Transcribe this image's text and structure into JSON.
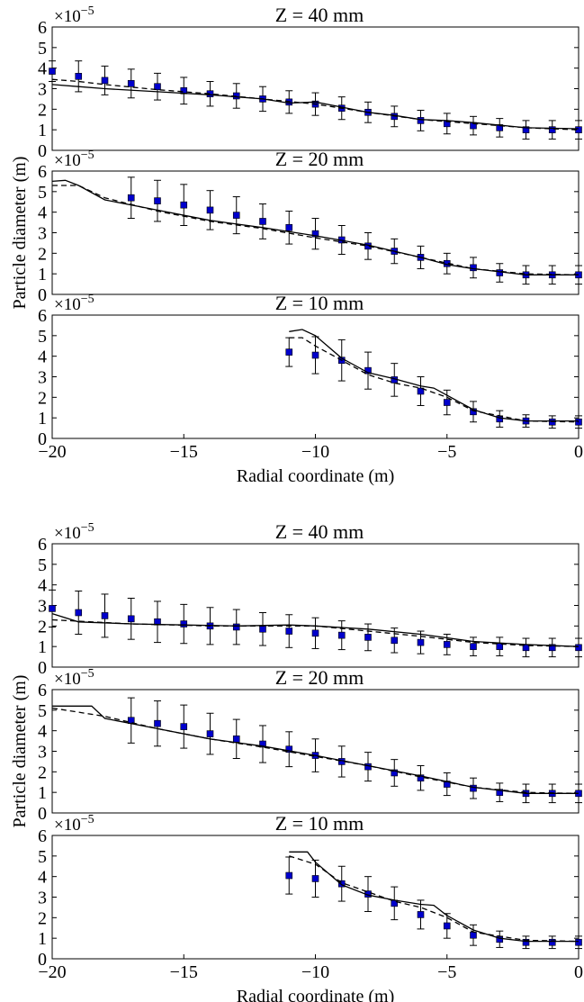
{
  "chart_data": [
    {
      "type": "line",
      "title": "Z = 40 mm",
      "offset_base": "×10",
      "offset_exp": "−5",
      "xlim": [
        -20,
        0
      ],
      "ylim": [
        0,
        6
      ],
      "yticks": [
        0,
        1,
        2,
        3,
        4,
        5,
        6
      ],
      "series": [
        {
          "style": "markers",
          "color": "#0000cc",
          "x": [
            -20,
            -19,
            -18,
            -17,
            -16,
            -15,
            -14,
            -13,
            -12,
            -11,
            -10,
            -9,
            -8,
            -7,
            -6,
            -5,
            -4,
            -3,
            -2,
            -1,
            0
          ],
          "values": [
            3.85,
            3.6,
            3.4,
            3.25,
            3.1,
            2.9,
            2.75,
            2.65,
            2.5,
            2.35,
            2.25,
            2.05,
            1.85,
            1.65,
            1.45,
            1.3,
            1.2,
            1.1,
            1.0,
            1.0,
            1.0
          ],
          "errors": [
            0.5,
            0.75,
            0.7,
            0.7,
            0.65,
            0.65,
            0.6,
            0.6,
            0.6,
            0.55,
            0.55,
            0.55,
            0.5,
            0.5,
            0.5,
            0.5,
            0.45,
            0.45,
            0.45,
            0.45,
            0.45
          ]
        },
        {
          "style": "solid",
          "color": "#000000",
          "x": [
            -20,
            -19,
            -18,
            -16,
            -14,
            -12,
            -11,
            -10,
            -9,
            -8,
            -7,
            -6,
            -5,
            -4,
            -2,
            0
          ],
          "values": [
            3.2,
            3.1,
            3.0,
            2.85,
            2.7,
            2.5,
            2.3,
            2.35,
            2.1,
            1.85,
            1.7,
            1.5,
            1.45,
            1.35,
            1.1,
            1.05
          ]
        },
        {
          "style": "dashed",
          "color": "#000000",
          "x": [
            -20,
            -19,
            -18,
            -16,
            -14,
            -12,
            -10,
            -8,
            -6,
            -4,
            -2,
            0
          ],
          "values": [
            3.45,
            3.35,
            3.2,
            2.95,
            2.75,
            2.5,
            2.25,
            1.85,
            1.5,
            1.3,
            1.1,
            1.0
          ]
        }
      ]
    },
    {
      "type": "line",
      "title": "Z = 20 mm",
      "offset_base": "×10",
      "offset_exp": "−5",
      "ylabel": "Particle diameter (m)",
      "xlim": [
        -20,
        0
      ],
      "ylim": [
        0,
        6
      ],
      "yticks": [
        0,
        1,
        2,
        3,
        4,
        5,
        6
      ],
      "series": [
        {
          "style": "markers",
          "color": "#0000cc",
          "x": [
            -17,
            -16,
            -15,
            -14,
            -13,
            -12,
            -11,
            -10,
            -9,
            -8,
            -7,
            -6,
            -5,
            -4,
            -3,
            -2,
            -1,
            0
          ],
          "values": [
            4.7,
            4.55,
            4.35,
            4.1,
            3.85,
            3.55,
            3.25,
            2.95,
            2.65,
            2.35,
            2.1,
            1.8,
            1.5,
            1.3,
            1.05,
            0.95,
            0.95,
            0.95
          ],
          "errors": [
            1.0,
            1.0,
            1.0,
            0.95,
            0.9,
            0.85,
            0.8,
            0.75,
            0.7,
            0.65,
            0.6,
            0.55,
            0.5,
            0.5,
            0.45,
            0.45,
            0.45,
            0.45
          ]
        },
        {
          "style": "solid",
          "color": "#000000",
          "x": [
            -20,
            -19.5,
            -19,
            -18,
            -16,
            -14,
            -12,
            -10,
            -8,
            -6,
            -5,
            -4,
            -3,
            -2,
            0
          ],
          "values": [
            5.5,
            5.55,
            5.3,
            4.6,
            4.1,
            3.6,
            3.25,
            2.85,
            2.4,
            1.8,
            1.45,
            1.25,
            1.1,
            0.95,
            0.95
          ]
        },
        {
          "style": "dashed",
          "color": "#000000",
          "x": [
            -20,
            -19,
            -18,
            -16,
            -14,
            -12,
            -10,
            -8,
            -6,
            -4,
            -2,
            0
          ],
          "values": [
            5.3,
            5.3,
            4.7,
            4.05,
            3.55,
            3.2,
            2.75,
            2.35,
            1.8,
            1.25,
            1.0,
            0.95
          ]
        }
      ]
    },
    {
      "type": "line",
      "title": "Z = 10 mm",
      "offset_base": "×10",
      "offset_exp": "−5",
      "xlabel": "Radial coordinate (m)",
      "xlim": [
        -20,
        0
      ],
      "ylim": [
        0,
        6
      ],
      "yticks": [
        0,
        1,
        2,
        3,
        4,
        5,
        6
      ],
      "xticks": [
        {
          "value": -20,
          "label": "−20"
        },
        {
          "value": -15,
          "label": "−15"
        },
        {
          "value": -10,
          "label": "−10"
        },
        {
          "value": -5,
          "label": "−5"
        },
        0
      ],
      "series": [
        {
          "style": "markers",
          "color": "#0000cc",
          "x": [
            -11,
            -10,
            -9,
            -8,
            -7,
            -6,
            -5,
            -4,
            -3,
            -2,
            -1,
            0
          ],
          "values": [
            4.2,
            4.05,
            3.8,
            3.3,
            2.85,
            2.3,
            1.75,
            1.3,
            0.95,
            0.85,
            0.8,
            0.8
          ],
          "errors": [
            0.7,
            0.9,
            1.0,
            0.9,
            0.8,
            0.7,
            0.6,
            0.5,
            0.4,
            0.3,
            0.3,
            0.3
          ]
        },
        {
          "style": "solid",
          "color": "#000000",
          "x": [
            -11,
            -10.5,
            -10,
            -9,
            -8,
            -7,
            -6,
            -5.5,
            -5,
            -4,
            -3,
            -2,
            0
          ],
          "values": [
            5.2,
            5.3,
            5.0,
            3.9,
            3.2,
            2.9,
            2.55,
            2.45,
            2.1,
            1.4,
            1.0,
            0.85,
            0.85
          ]
        },
        {
          "style": "dashed",
          "color": "#000000",
          "x": [
            -11,
            -10.5,
            -10,
            -9,
            -8,
            -7,
            -6,
            -5,
            -4,
            -2,
            0
          ],
          "values": [
            4.9,
            4.9,
            4.5,
            3.8,
            3.1,
            2.7,
            2.45,
            2.0,
            1.35,
            0.85,
            0.8
          ]
        }
      ]
    },
    {
      "type": "line",
      "title": "Z = 40 mm",
      "offset_base": "×10",
      "offset_exp": "−5",
      "xlim": [
        -20,
        0
      ],
      "ylim": [
        0,
        6
      ],
      "yticks": [
        0,
        1,
        2,
        3,
        4,
        5,
        6
      ],
      "series": [
        {
          "style": "markers",
          "color": "#0000cc",
          "x": [
            -20,
            -19,
            -18,
            -17,
            -16,
            -15,
            -14,
            -13,
            -12,
            -11,
            -10,
            -9,
            -8,
            -7,
            -6,
            -5,
            -4,
            -3,
            -2,
            -1,
            0
          ],
          "values": [
            2.85,
            2.65,
            2.5,
            2.35,
            2.2,
            2.1,
            2.0,
            1.95,
            1.85,
            1.75,
            1.65,
            1.55,
            1.45,
            1.3,
            1.2,
            1.1,
            1.0,
            1.0,
            0.95,
            0.95,
            0.95
          ],
          "errors": [
            0.9,
            1.05,
            1.05,
            1.0,
            1.0,
            0.95,
            0.9,
            0.85,
            0.8,
            0.8,
            0.75,
            0.7,
            0.65,
            0.6,
            0.55,
            0.5,
            0.45,
            0.45,
            0.45,
            0.45,
            0.45
          ]
        },
        {
          "style": "solid",
          "color": "#000000",
          "x": [
            -20,
            -19,
            -17,
            -15,
            -13,
            -11,
            -10,
            -8,
            -6,
            -4,
            -2,
            0
          ],
          "values": [
            2.6,
            2.2,
            2.1,
            2.05,
            2.0,
            2.05,
            2.0,
            1.85,
            1.6,
            1.25,
            1.1,
            1.0
          ]
        },
        {
          "style": "dashed",
          "color": "#000000",
          "x": [
            -20,
            -17,
            -14,
            -10,
            -8,
            -6,
            -4,
            -2,
            0
          ],
          "values": [
            2.3,
            2.1,
            2.0,
            2.0,
            1.75,
            1.5,
            1.2,
            1.05,
            1.0
          ]
        }
      ]
    },
    {
      "type": "line",
      "title": "Z = 20 mm",
      "offset_base": "×10",
      "offset_exp": "−5",
      "ylabel": "Particle diameter (m)",
      "xlim": [
        -20,
        0
      ],
      "ylim": [
        0,
        6
      ],
      "yticks": [
        0,
        1,
        2,
        3,
        4,
        5,
        6
      ],
      "series": [
        {
          "style": "markers",
          "color": "#0000cc",
          "x": [
            -17,
            -16,
            -15,
            -14,
            -13,
            -12,
            -11,
            -10,
            -9,
            -8,
            -7,
            -6,
            -5,
            -4,
            -3,
            -2,
            -1,
            0
          ],
          "values": [
            4.5,
            4.35,
            4.2,
            3.85,
            3.6,
            3.35,
            3.1,
            2.8,
            2.5,
            2.25,
            1.95,
            1.7,
            1.4,
            1.2,
            1.0,
            0.95,
            0.95,
            0.95
          ],
          "errors": [
            1.1,
            1.1,
            1.05,
            1.0,
            0.95,
            0.9,
            0.85,
            0.8,
            0.75,
            0.7,
            0.65,
            0.6,
            0.55,
            0.5,
            0.45,
            0.45,
            0.45,
            0.45
          ]
        },
        {
          "style": "solid",
          "color": "#000000",
          "x": [
            -20,
            -19,
            -18.5,
            -18,
            -16,
            -14,
            -12,
            -10,
            -8,
            -6,
            -4,
            -2,
            0
          ],
          "values": [
            5.2,
            5.2,
            5.2,
            4.6,
            4.1,
            3.6,
            3.25,
            2.8,
            2.3,
            1.8,
            1.25,
            0.95,
            0.95
          ]
        },
        {
          "style": "dashed",
          "color": "#000000",
          "x": [
            -20,
            -18,
            -16,
            -14,
            -12,
            -10,
            -8,
            -6,
            -4,
            -2,
            0
          ],
          "values": [
            5.1,
            4.7,
            4.1,
            3.6,
            3.2,
            2.75,
            2.3,
            1.75,
            1.25,
            1.0,
            0.95
          ]
        }
      ]
    },
    {
      "type": "line",
      "title": "Z = 10 mm",
      "offset_base": "×10",
      "offset_exp": "−5",
      "xlabel": "Radial coordinate (m)",
      "xlim": [
        -20,
        0
      ],
      "ylim": [
        0,
        6
      ],
      "yticks": [
        0,
        1,
        2,
        3,
        4,
        5,
        6
      ],
      "xticks": [
        {
          "value": -20,
          "label": "−20"
        },
        {
          "value": -15,
          "label": "−15"
        },
        {
          "value": -10,
          "label": "−10"
        },
        {
          "value": -5,
          "label": "−5"
        },
        0
      ],
      "series": [
        {
          "style": "markers",
          "color": "#0000cc",
          "x": [
            -11,
            -10,
            -9,
            -8,
            -7,
            -6,
            -5,
            -4,
            -3,
            -2,
            -1,
            0
          ],
          "values": [
            4.05,
            3.9,
            3.65,
            3.15,
            2.7,
            2.15,
            1.6,
            1.15,
            0.95,
            0.8,
            0.8,
            0.8
          ],
          "errors": [
            0.9,
            0.9,
            0.85,
            0.85,
            0.8,
            0.7,
            0.6,
            0.5,
            0.4,
            0.3,
            0.3,
            0.3
          ]
        },
        {
          "style": "solid",
          "color": "#000000",
          "x": [
            -11,
            -10.3,
            -10,
            -9,
            -8,
            -7,
            -6,
            -5.5,
            -5,
            -4,
            -3,
            -2,
            0
          ],
          "values": [
            5.2,
            5.2,
            4.7,
            3.6,
            3.1,
            2.85,
            2.65,
            2.6,
            2.1,
            1.4,
            1.0,
            0.85,
            0.85
          ]
        },
        {
          "style": "dashed",
          "color": "#000000",
          "x": [
            -11,
            -10,
            -9,
            -7,
            -6,
            -5,
            -4,
            -2,
            0
          ],
          "values": [
            5.0,
            4.6,
            3.7,
            2.8,
            2.5,
            2.0,
            1.3,
            0.9,
            0.85
          ]
        }
      ]
    }
  ]
}
